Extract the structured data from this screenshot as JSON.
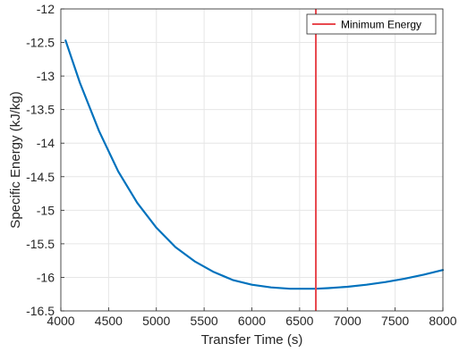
{
  "chart_data": {
    "type": "line",
    "title": "",
    "xlabel": "Transfer Time (s)",
    "ylabel": "Specific Energy (kJ/kg)",
    "xlim": [
      4000,
      8000
    ],
    "ylim": [
      -16.5,
      -12
    ],
    "xticks": [
      4000,
      4500,
      5000,
      5500,
      6000,
      6500,
      7000,
      7500,
      8000
    ],
    "yticks": [
      -16.5,
      -16,
      -15.5,
      -15,
      -14.5,
      -14,
      -13.5,
      -13,
      -12.5,
      -12
    ],
    "grid": true,
    "legend": {
      "placement": "top-right",
      "entries": [
        "Minimum Energy"
      ]
    },
    "series": [
      {
        "color": "#0072BD",
        "x": [
          4050,
          4200,
          4400,
          4600,
          4800,
          5000,
          5200,
          5400,
          5600,
          5800,
          6000,
          6200,
          6400,
          6600,
          6670,
          6800,
          7000,
          7200,
          7400,
          7600,
          7800,
          8000
        ],
        "y": [
          -12.47,
          -13.1,
          -13.82,
          -14.42,
          -14.89,
          -15.26,
          -15.55,
          -15.76,
          -15.92,
          -16.04,
          -16.11,
          -16.15,
          -16.17,
          -16.17,
          -16.17,
          -16.16,
          -16.14,
          -16.11,
          -16.07,
          -16.02,
          -15.96,
          -15.89
        ]
      }
    ],
    "vlines": [
      {
        "name": "Minimum Energy",
        "x": 6670,
        "color": "#E8494F"
      }
    ]
  }
}
